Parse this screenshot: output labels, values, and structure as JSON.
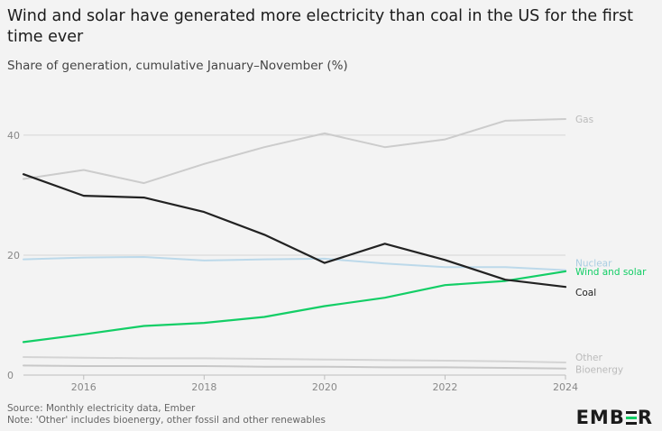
{
  "header": {
    "title": "Wind and solar have generated more electricity than coal in the US for the first time ever",
    "subtitle": "Share of generation, cumulative January–November (%)"
  },
  "footer": {
    "source": "Source: Monthly electricity data, Ember",
    "note": "Note: 'Other' includes bioenergy, other fossil and other renewables"
  },
  "logo": {
    "text_left": "EMB",
    "text_right": "R"
  },
  "chart_data": {
    "type": "line",
    "title": "Wind and solar have generated more electricity than coal in the US for the first time ever",
    "subtitle": "Share of generation, cumulative January–November (%)",
    "x": [
      2015,
      2016,
      2017,
      2018,
      2019,
      2020,
      2021,
      2022,
      2023,
      2024
    ],
    "xticks": [
      2016,
      2018,
      2020,
      2022,
      2024
    ],
    "yticks": [
      0,
      20,
      40
    ],
    "xlim": [
      2015,
      2024
    ],
    "ylim": [
      0,
      46
    ],
    "grid": "horizontal",
    "series": [
      {
        "name": "Gas",
        "color": "#cccccc",
        "values": [
          32.7,
          34.2,
          32.0,
          35.2,
          38.0,
          40.3,
          38.0,
          39.3,
          42.4,
          42.7
        ]
      },
      {
        "name": "Coal",
        "color": "#222222",
        "values": [
          33.5,
          29.9,
          29.6,
          27.2,
          23.4,
          18.7,
          21.9,
          19.2,
          15.9,
          14.7
        ]
      },
      {
        "name": "Nuclear",
        "color": "#bcd9ea",
        "values": [
          19.3,
          19.6,
          19.7,
          19.1,
          19.3,
          19.4,
          18.6,
          18.0,
          18.0,
          17.5
        ]
      },
      {
        "name": "Wind and solar",
        "color": "#13ce66",
        "values": [
          5.5,
          6.8,
          8.2,
          8.7,
          9.7,
          11.5,
          12.9,
          15.0,
          15.7,
          17.3
        ]
      },
      {
        "name": "Other",
        "color": "#d4d4d4",
        "values": [
          3.0,
          2.9,
          2.8,
          2.8,
          2.7,
          2.6,
          2.5,
          2.4,
          2.3,
          2.1
        ]
      },
      {
        "name": "Bioenergy",
        "color": "#c8c8c8",
        "values": [
          1.6,
          1.5,
          1.5,
          1.5,
          1.4,
          1.4,
          1.3,
          1.3,
          1.2,
          1.1
        ]
      }
    ]
  }
}
